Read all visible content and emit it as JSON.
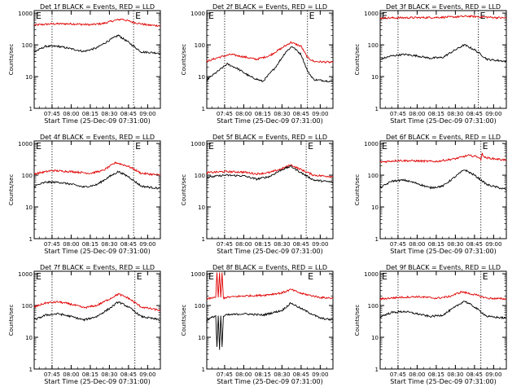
{
  "chart_data": [
    {
      "type": "line",
      "title": "Det 1f BLACK = Events, RED = LLD",
      "xlabel": "Start Time (25-Dec-09 07:31:00)",
      "ylabel": "Counts/sec",
      "x_ticks": [
        "07:45",
        "08:00",
        "08:15",
        "08:30",
        "08:45",
        "09:00"
      ],
      "y_ticks": [
        "1",
        "10",
        "100",
        "1000"
      ],
      "ylim": [
        1,
        1200
      ],
      "yscale": "log",
      "xlim": [
        "07:31",
        "09:10"
      ],
      "markers": {
        "letters": [
          "E",
          "E"
        ],
        "x": [
          "07:31",
          "08:49"
        ],
        "dotted_lines_x": [
          "07:45",
          "08:49"
        ]
      },
      "series": [
        {
          "name": "RED = LLD",
          "color": "#e00000",
          "x": [
            "07:31",
            "07:45",
            "08:00",
            "08:15",
            "08:25",
            "08:35",
            "08:40",
            "08:48",
            "09:00",
            "09:10"
          ],
          "y": [
            420,
            460,
            460,
            430,
            470,
            600,
            650,
            520,
            420,
            400
          ]
        },
        {
          "name": "BLACK = Events",
          "color": "#000000",
          "x": [
            "07:31",
            "07:40",
            "07:50",
            "08:00",
            "08:10",
            "08:20",
            "08:30",
            "08:37",
            "08:45",
            "08:55",
            "09:10"
          ],
          "y": [
            60,
            90,
            90,
            75,
            62,
            80,
            140,
            200,
            120,
            60,
            55
          ]
        }
      ]
    },
    {
      "type": "line",
      "title": "Det 2f BLACK = Events, RED = LLD",
      "xlabel": "Start Time (25-Dec-09 07:31:00)",
      "ylabel": "Counts/sec",
      "x_ticks": [
        "07:45",
        "08:00",
        "08:15",
        "08:30",
        "08:45",
        "09:00"
      ],
      "y_ticks": [
        "1",
        "10",
        "100",
        "1000"
      ],
      "ylim": [
        1,
        1200
      ],
      "yscale": "log",
      "xlim": [
        "07:31",
        "09:10"
      ],
      "markers": {
        "letters": [
          "E",
          "E"
        ],
        "x": [
          "07:31",
          "08:50"
        ],
        "dotted_lines_x": [
          "07:45",
          "08:50"
        ]
      },
      "series": [
        {
          "name": "RED = LLD",
          "color": "#e00000",
          "x": [
            "07:31",
            "07:40",
            "07:50",
            "08:00",
            "08:10",
            "08:20",
            "08:30",
            "08:37",
            "08:45",
            "08:50",
            "08:55",
            "09:10"
          ],
          "y": [
            30,
            40,
            50,
            42,
            35,
            45,
            80,
            120,
            90,
            40,
            30,
            28
          ]
        },
        {
          "name": "BLACK = Events",
          "color": "#000000",
          "x": [
            "07:31",
            "07:40",
            "07:47",
            "07:55",
            "08:05",
            "08:15",
            "08:25",
            "08:33",
            "08:38",
            "08:45",
            "08:50",
            "08:55",
            "09:10"
          ],
          "y": [
            8,
            15,
            25,
            18,
            10,
            7,
            20,
            60,
            90,
            50,
            15,
            8,
            7
          ]
        }
      ]
    },
    {
      "type": "line",
      "title": "Det 3f BLACK = Events, RED = LLD",
      "xlabel": "Start Time (25-Dec-09 07:31:00)",
      "ylabel": "Counts/sec",
      "x_ticks": [
        "07:45",
        "08:00",
        "08:15",
        "08:30",
        "08:45",
        "09:00"
      ],
      "y_ticks": [
        "1",
        "10",
        "100",
        "1000"
      ],
      "ylim": [
        1,
        1200
      ],
      "yscale": "log",
      "xlim": [
        "07:31",
        "09:10"
      ],
      "markers": {
        "letters": [
          "E",
          "E"
        ],
        "x": [
          "07:31",
          "08:48"
        ],
        "dotted_lines_x": [
          "07:45",
          "08:48"
        ]
      },
      "series": [
        {
          "name": "RED = LLD",
          "color": "#e00000",
          "x": [
            "07:31",
            "07:45",
            "08:00",
            "08:15",
            "08:30",
            "08:40",
            "08:50",
            "09:10"
          ],
          "y": [
            700,
            710,
            720,
            730,
            760,
            800,
            760,
            700
          ]
        },
        {
          "name": "BLACK = Events",
          "color": "#000000",
          "x": [
            "07:31",
            "07:40",
            "07:50",
            "08:00",
            "08:10",
            "08:20",
            "08:30",
            "08:37",
            "08:45",
            "08:55",
            "09:10"
          ],
          "y": [
            35,
            45,
            50,
            45,
            38,
            40,
            70,
            100,
            70,
            35,
            30
          ]
        }
      ]
    },
    {
      "type": "line",
      "title": "Det 4f BLACK = Events, RED = LLD",
      "xlabel": "Start Time (25-Dec-09 07:31:00)",
      "ylabel": "Counts/sec",
      "x_ticks": [
        "07:45",
        "08:00",
        "08:15",
        "08:30",
        "08:45",
        "09:00"
      ],
      "y_ticks": [
        "1",
        "10",
        "100",
        "1000"
      ],
      "ylim": [
        1,
        1200
      ],
      "yscale": "log",
      "xlim": [
        "07:31",
        "09:10"
      ],
      "markers": {
        "letters": [
          "E",
          "E"
        ],
        "x": [
          "07:31",
          "08:49"
        ],
        "dotted_lines_x": [
          "07:45",
          "08:49"
        ]
      },
      "series": [
        {
          "name": "RED = LLD",
          "color": "#e00000",
          "x": [
            "07:31",
            "07:45",
            "08:00",
            "08:15",
            "08:25",
            "08:35",
            "08:45",
            "08:55",
            "09:10"
          ],
          "y": [
            110,
            140,
            130,
            115,
            140,
            250,
            190,
            115,
            100
          ]
        },
        {
          "name": "BLACK = Events",
          "color": "#000000",
          "x": [
            "07:31",
            "07:40",
            "07:50",
            "08:00",
            "08:10",
            "08:20",
            "08:30",
            "08:37",
            "08:45",
            "08:55",
            "09:10"
          ],
          "y": [
            45,
            60,
            60,
            52,
            42,
            50,
            90,
            130,
            90,
            45,
            38
          ]
        }
      ]
    },
    {
      "type": "line",
      "title": "Det 5f BLACK = Events, RED = LLD",
      "xlabel": "Start Time (25-Dec-09 07:31:00)",
      "ylabel": "Counts/sec",
      "x_ticks": [
        "07:45",
        "08:00",
        "08:15",
        "08:30",
        "08:45",
        "09:00"
      ],
      "y_ticks": [
        "1",
        "10",
        "100",
        "1000"
      ],
      "ylim": [
        1,
        1200
      ],
      "yscale": "log",
      "xlim": [
        "07:31",
        "09:10"
      ],
      "markers": {
        "letters": [
          "E",
          "E"
        ],
        "x": [
          "07:31",
          "08:49"
        ],
        "dotted_lines_x": [
          "07:45",
          "08:49"
        ]
      },
      "series": [
        {
          "name": "RED = LLD",
          "color": "#e00000",
          "x": [
            "07:31",
            "07:45",
            "08:00",
            "08:10",
            "08:20",
            "08:30",
            "08:37",
            "08:45",
            "08:55",
            "09:10"
          ],
          "y": [
            120,
            130,
            125,
            110,
            120,
            160,
            210,
            150,
            100,
            90
          ]
        },
        {
          "name": "BLACK = Events",
          "color": "#000000",
          "x": [
            "07:31",
            "07:45",
            "08:00",
            "08:10",
            "08:20",
            "08:30",
            "08:37",
            "08:45",
            "08:55",
            "09:10"
          ],
          "y": [
            85,
            100,
            95,
            75,
            90,
            150,
            190,
            120,
            70,
            60
          ]
        }
      ]
    },
    {
      "type": "line",
      "title": "Det 6f BLACK = Events, RED = LLD",
      "xlabel": "Start Time (25-Dec-09 07:31:00)",
      "ylabel": "Counts/sec",
      "x_ticks": [
        "07:45",
        "08:00",
        "08:15",
        "08:30",
        "08:45",
        "09:00"
      ],
      "y_ticks": [
        "1",
        "10",
        "100",
        "1000"
      ],
      "ylim": [
        1,
        1200
      ],
      "yscale": "log",
      "xlim": [
        "07:31",
        "09:10"
      ],
      "markers": {
        "letters": [
          "E",
          "E"
        ],
        "x": [
          "07:31",
          "08:50"
        ],
        "dotted_lines_x": [
          "07:45",
          "08:50"
        ]
      },
      "series": [
        {
          "name": "RED = LLD",
          "color": "#e00000",
          "x": [
            "07:31",
            "07:45",
            "08:00",
            "08:15",
            "08:30",
            "08:40",
            "08:48",
            "08:50",
            "08:51",
            "08:53",
            "09:00",
            "09:10"
          ],
          "y": [
            260,
            290,
            280,
            270,
            330,
            420,
            380,
            300,
            500,
            360,
            330,
            300
          ]
        },
        {
          "name": "BLACK = Events",
          "color": "#000000",
          "x": [
            "07:31",
            "07:40",
            "07:50",
            "08:00",
            "08:10",
            "08:20",
            "08:30",
            "08:37",
            "08:45",
            "08:55",
            "09:10"
          ],
          "y": [
            40,
            65,
            70,
            55,
            40,
            45,
            90,
            150,
            100,
            50,
            35
          ]
        }
      ]
    },
    {
      "type": "line",
      "title": "Det 7f BLACK = Events, RED = LLD",
      "xlabel": "Start Time (25-Dec-09 07:31:00)",
      "ylabel": "Counts/sec",
      "x_ticks": [
        "07:45",
        "08:00",
        "08:15",
        "08:30",
        "08:45",
        "09:00"
      ],
      "y_ticks": [
        "1",
        "10",
        "100",
        "1000"
      ],
      "ylim": [
        1,
        1200
      ],
      "yscale": "log",
      "xlim": [
        "07:31",
        "09:10"
      ],
      "markers": {
        "letters": [
          "E",
          "E"
        ],
        "x": [
          "07:31",
          "08:50"
        ],
        "dotted_lines_x": [
          "07:45",
          "08:50"
        ]
      },
      "series": [
        {
          "name": "RED = LLD",
          "color": "#e00000",
          "x": [
            "07:31",
            "07:40",
            "07:50",
            "08:00",
            "08:10",
            "08:20",
            "08:30",
            "08:37",
            "08:45",
            "08:55",
            "09:10"
          ],
          "y": [
            90,
            120,
            130,
            110,
            85,
            100,
            160,
            230,
            170,
            90,
            70
          ]
        },
        {
          "name": "BLACK = Events",
          "color": "#000000",
          "x": [
            "07:31",
            "07:40",
            "07:50",
            "08:00",
            "08:10",
            "08:20",
            "08:30",
            "08:37",
            "08:45",
            "08:55",
            "09:10"
          ],
          "y": [
            35,
            50,
            55,
            45,
            35,
            45,
            80,
            130,
            90,
            45,
            35
          ]
        }
      ]
    },
    {
      "type": "line",
      "title": "Det 8f BLACK = Events, RED = LLD",
      "xlabel": "Start Time (25-Dec-09 07:31:00)",
      "ylabel": "Counts/sec",
      "x_ticks": [
        "07:45",
        "08:00",
        "08:15",
        "08:30",
        "08:45",
        "09:00"
      ],
      "y_ticks": [
        "1",
        "10",
        "100",
        "1000"
      ],
      "ylim": [
        1,
        1200
      ],
      "yscale": "log",
      "xlim": [
        "07:31",
        "09:10"
      ],
      "markers": {
        "letters": [
          "E",
          "E"
        ],
        "x": [
          "07:31",
          "08:49"
        ],
        "dotted_lines_x": []
      },
      "series": [
        {
          "name": "RED = LLD",
          "color": "#e00000",
          "x": [
            "07:31",
            "07:38",
            "07:39",
            "07:40",
            "07:41",
            "07:42",
            "07:43",
            "07:44",
            "07:46",
            "08:00",
            "08:15",
            "08:30",
            "08:37",
            "08:45",
            "09:00",
            "09:10"
          ],
          "y": [
            160,
            180,
            1100,
            180,
            1100,
            180,
            1100,
            170,
            180,
            200,
            210,
            250,
            320,
            240,
            180,
            170
          ]
        },
        {
          "name": "BLACK = Events",
          "color": "#000000",
          "x": [
            "07:31",
            "07:38",
            "07:39",
            "07:40",
            "07:41",
            "07:42",
            "07:43",
            "07:44",
            "07:46",
            "08:00",
            "08:15",
            "08:30",
            "08:37",
            "08:45",
            "09:00",
            "09:10"
          ],
          "y": [
            35,
            48,
            5,
            48,
            4,
            48,
            5,
            45,
            50,
            55,
            50,
            70,
            120,
            80,
            40,
            35
          ]
        }
      ]
    },
    {
      "type": "line",
      "title": "Det 9f BLACK = Events, RED = LLD",
      "xlabel": "Start Time (25-Dec-09 07:31:00)",
      "ylabel": "Counts/sec",
      "x_ticks": [
        "07:45",
        "08:00",
        "08:15",
        "08:30",
        "08:45",
        "09:00"
      ],
      "y_ticks": [
        "1",
        "10",
        "100",
        "1000"
      ],
      "ylim": [
        1,
        1200
      ],
      "yscale": "log",
      "xlim": [
        "07:31",
        "09:10"
      ],
      "markers": {
        "letters": [
          "E",
          "E"
        ],
        "x": [
          "07:31",
          "08:50"
        ],
        "dotted_lines_x": [
          "07:45",
          "08:50"
        ]
      },
      "series": [
        {
          "name": "RED = LLD",
          "color": "#e00000",
          "x": [
            "07:31",
            "07:45",
            "08:00",
            "08:15",
            "08:25",
            "08:35",
            "08:45",
            "08:55",
            "09:10"
          ],
          "y": [
            160,
            180,
            190,
            170,
            190,
            270,
            220,
            170,
            160
          ]
        },
        {
          "name": "BLACK = Events",
          "color": "#000000",
          "x": [
            "07:31",
            "07:40",
            "07:50",
            "08:00",
            "08:10",
            "08:20",
            "08:30",
            "08:37",
            "08:45",
            "08:55",
            "09:10"
          ],
          "y": [
            45,
            60,
            65,
            55,
            45,
            50,
            90,
            140,
            90,
            45,
            40
          ]
        }
      ]
    }
  ]
}
